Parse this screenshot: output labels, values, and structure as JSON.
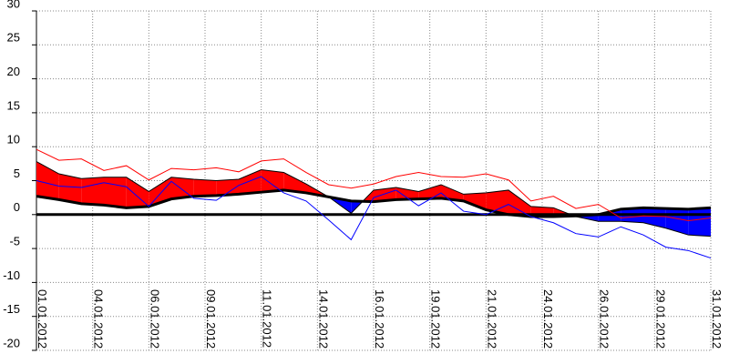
{
  "chart_data": {
    "type": "line",
    "x": [
      1,
      2,
      3,
      4,
      5,
      6,
      7,
      8,
      9,
      10,
      11,
      12,
      13,
      14,
      15,
      16,
      17,
      18,
      19,
      20,
      21,
      22,
      23,
      24,
      25,
      26,
      27,
      28,
      29,
      30,
      31
    ],
    "series": [
      {
        "color": "#000000",
        "width": 3,
        "values": [
          2.7,
          2.2,
          1.6,
          1.4,
          1.0,
          1.2,
          2.3,
          2.7,
          2.8,
          3.0,
          3.3,
          3.6,
          3.2,
          2.6,
          2.0,
          1.9,
          2.2,
          2.3,
          2.4,
          2.0,
          0.7,
          0.0,
          -0.3,
          -0.3,
          -0.2,
          0.0,
          0.8,
          1.0,
          0.9,
          0.8,
          1.0
        ]
      },
      {
        "color": "#000000",
        "width": 1,
        "values": [
          7.8,
          6.0,
          5.3,
          5.5,
          5.5,
          3.4,
          5.5,
          5.2,
          5.0,
          5.2,
          6.6,
          6.2,
          4.5,
          2.6,
          0.2,
          3.6,
          4.0,
          3.4,
          4.4,
          3.0,
          3.2,
          3.6,
          1.2,
          1.0,
          -0.3,
          -1.0,
          -1.0,
          -1.2,
          -2.0,
          -3.0,
          -3.2
        ]
      },
      {
        "color": "#ff0000",
        "width": 1,
        "values": [
          9.6,
          8.0,
          8.2,
          6.5,
          7.2,
          5.1,
          6.8,
          6.6,
          6.9,
          6.3,
          7.9,
          8.2,
          6.2,
          4.4,
          3.9,
          4.5,
          5.6,
          6.2,
          5.6,
          5.5,
          6.0,
          5.1,
          2.0,
          2.7,
          0.9,
          1.5,
          -0.5,
          -0.2,
          -0.3,
          -0.9,
          -0.5
        ]
      },
      {
        "color": "#0000ff",
        "width": 1,
        "values": [
          5.0,
          4.2,
          4.0,
          4.7,
          4.1,
          1.2,
          4.9,
          2.4,
          2.1,
          4.3,
          5.6,
          3.2,
          2.0,
          -0.8,
          -3.7,
          2.5,
          3.6,
          1.3,
          3.2,
          0.5,
          0.0,
          1.5,
          -0.3,
          -1.2,
          -2.8,
          -3.3,
          -1.8,
          -3.0,
          -4.8,
          -5.3,
          -6.4
        ]
      }
    ],
    "fill": {
      "upper": 1,
      "lower": 0,
      "above_color": "#ff0000",
      "below_color": "#0000ff"
    },
    "zero_line": 0,
    "xlim": [
      1,
      31
    ],
    "xticks": [
      {
        "value": 1,
        "label": "01.01.2012"
      },
      {
        "value": 3.5,
        "label": "04.01.2012"
      },
      {
        "value": 6,
        "label": "06.01.2012"
      },
      {
        "value": 8.5,
        "label": "09.01.2012"
      },
      {
        "value": 11,
        "label": "11.01.2012"
      },
      {
        "value": 13.5,
        "label": "14.01.2012"
      },
      {
        "value": 16,
        "label": "16.01.2012"
      },
      {
        "value": 18.5,
        "label": "19.01.2012"
      },
      {
        "value": 21,
        "label": "21.01.2012"
      },
      {
        "value": 23.5,
        "label": "24.01.2012"
      },
      {
        "value": 26,
        "label": "26.01.2012"
      },
      {
        "value": 28.5,
        "label": "29.01.2012"
      },
      {
        "value": 31,
        "label": "31.01.2012"
      }
    ],
    "ylim": [
      -20,
      30
    ],
    "yticks": [
      -20,
      -15,
      -10,
      -5,
      0,
      5,
      10,
      15,
      20,
      25,
      30
    ],
    "grid": true
  }
}
